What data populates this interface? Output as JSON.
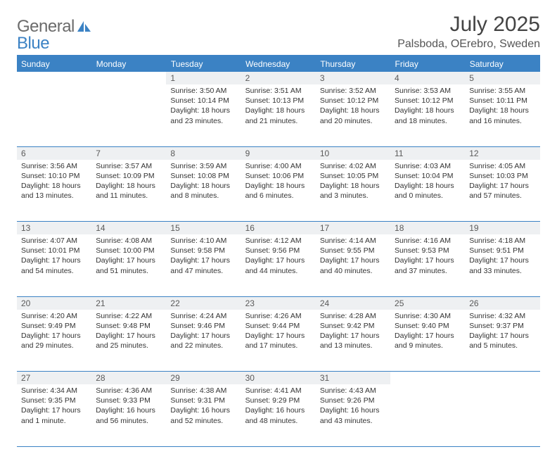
{
  "logo": {
    "part1": "General",
    "part2": "Blue"
  },
  "title": "July 2025",
  "location": "Palsboda, OErebro, Sweden",
  "headers": [
    "Sunday",
    "Monday",
    "Tuesday",
    "Wednesday",
    "Thursday",
    "Friday",
    "Saturday"
  ],
  "colors": {
    "accent": "#3b82c4",
    "daynum_bg": "#eef0f2",
    "text": "#333333",
    "logo_gray": "#6b6b6b"
  },
  "weeks": [
    [
      null,
      null,
      {
        "n": "1",
        "sr": "Sunrise: 3:50 AM",
        "ss": "Sunset: 10:14 PM",
        "dl": "Daylight: 18 hours and 23 minutes."
      },
      {
        "n": "2",
        "sr": "Sunrise: 3:51 AM",
        "ss": "Sunset: 10:13 PM",
        "dl": "Daylight: 18 hours and 21 minutes."
      },
      {
        "n": "3",
        "sr": "Sunrise: 3:52 AM",
        "ss": "Sunset: 10:12 PM",
        "dl": "Daylight: 18 hours and 20 minutes."
      },
      {
        "n": "4",
        "sr": "Sunrise: 3:53 AM",
        "ss": "Sunset: 10:12 PM",
        "dl": "Daylight: 18 hours and 18 minutes."
      },
      {
        "n": "5",
        "sr": "Sunrise: 3:55 AM",
        "ss": "Sunset: 10:11 PM",
        "dl": "Daylight: 18 hours and 16 minutes."
      }
    ],
    [
      {
        "n": "6",
        "sr": "Sunrise: 3:56 AM",
        "ss": "Sunset: 10:10 PM",
        "dl": "Daylight: 18 hours and 13 minutes."
      },
      {
        "n": "7",
        "sr": "Sunrise: 3:57 AM",
        "ss": "Sunset: 10:09 PM",
        "dl": "Daylight: 18 hours and 11 minutes."
      },
      {
        "n": "8",
        "sr": "Sunrise: 3:59 AM",
        "ss": "Sunset: 10:08 PM",
        "dl": "Daylight: 18 hours and 8 minutes."
      },
      {
        "n": "9",
        "sr": "Sunrise: 4:00 AM",
        "ss": "Sunset: 10:06 PM",
        "dl": "Daylight: 18 hours and 6 minutes."
      },
      {
        "n": "10",
        "sr": "Sunrise: 4:02 AM",
        "ss": "Sunset: 10:05 PM",
        "dl": "Daylight: 18 hours and 3 minutes."
      },
      {
        "n": "11",
        "sr": "Sunrise: 4:03 AM",
        "ss": "Sunset: 10:04 PM",
        "dl": "Daylight: 18 hours and 0 minutes."
      },
      {
        "n": "12",
        "sr": "Sunrise: 4:05 AM",
        "ss": "Sunset: 10:03 PM",
        "dl": "Daylight: 17 hours and 57 minutes."
      }
    ],
    [
      {
        "n": "13",
        "sr": "Sunrise: 4:07 AM",
        "ss": "Sunset: 10:01 PM",
        "dl": "Daylight: 17 hours and 54 minutes."
      },
      {
        "n": "14",
        "sr": "Sunrise: 4:08 AM",
        "ss": "Sunset: 10:00 PM",
        "dl": "Daylight: 17 hours and 51 minutes."
      },
      {
        "n": "15",
        "sr": "Sunrise: 4:10 AM",
        "ss": "Sunset: 9:58 PM",
        "dl": "Daylight: 17 hours and 47 minutes."
      },
      {
        "n": "16",
        "sr": "Sunrise: 4:12 AM",
        "ss": "Sunset: 9:56 PM",
        "dl": "Daylight: 17 hours and 44 minutes."
      },
      {
        "n": "17",
        "sr": "Sunrise: 4:14 AM",
        "ss": "Sunset: 9:55 PM",
        "dl": "Daylight: 17 hours and 40 minutes."
      },
      {
        "n": "18",
        "sr": "Sunrise: 4:16 AM",
        "ss": "Sunset: 9:53 PM",
        "dl": "Daylight: 17 hours and 37 minutes."
      },
      {
        "n": "19",
        "sr": "Sunrise: 4:18 AM",
        "ss": "Sunset: 9:51 PM",
        "dl": "Daylight: 17 hours and 33 minutes."
      }
    ],
    [
      {
        "n": "20",
        "sr": "Sunrise: 4:20 AM",
        "ss": "Sunset: 9:49 PM",
        "dl": "Daylight: 17 hours and 29 minutes."
      },
      {
        "n": "21",
        "sr": "Sunrise: 4:22 AM",
        "ss": "Sunset: 9:48 PM",
        "dl": "Daylight: 17 hours and 25 minutes."
      },
      {
        "n": "22",
        "sr": "Sunrise: 4:24 AM",
        "ss": "Sunset: 9:46 PM",
        "dl": "Daylight: 17 hours and 22 minutes."
      },
      {
        "n": "23",
        "sr": "Sunrise: 4:26 AM",
        "ss": "Sunset: 9:44 PM",
        "dl": "Daylight: 17 hours and 17 minutes."
      },
      {
        "n": "24",
        "sr": "Sunrise: 4:28 AM",
        "ss": "Sunset: 9:42 PM",
        "dl": "Daylight: 17 hours and 13 minutes."
      },
      {
        "n": "25",
        "sr": "Sunrise: 4:30 AM",
        "ss": "Sunset: 9:40 PM",
        "dl": "Daylight: 17 hours and 9 minutes."
      },
      {
        "n": "26",
        "sr": "Sunrise: 4:32 AM",
        "ss": "Sunset: 9:37 PM",
        "dl": "Daylight: 17 hours and 5 minutes."
      }
    ],
    [
      {
        "n": "27",
        "sr": "Sunrise: 4:34 AM",
        "ss": "Sunset: 9:35 PM",
        "dl": "Daylight: 17 hours and 1 minute."
      },
      {
        "n": "28",
        "sr": "Sunrise: 4:36 AM",
        "ss": "Sunset: 9:33 PM",
        "dl": "Daylight: 16 hours and 56 minutes."
      },
      {
        "n": "29",
        "sr": "Sunrise: 4:38 AM",
        "ss": "Sunset: 9:31 PM",
        "dl": "Daylight: 16 hours and 52 minutes."
      },
      {
        "n": "30",
        "sr": "Sunrise: 4:41 AM",
        "ss": "Sunset: 9:29 PM",
        "dl": "Daylight: 16 hours and 48 minutes."
      },
      {
        "n": "31",
        "sr": "Sunrise: 4:43 AM",
        "ss": "Sunset: 9:26 PM",
        "dl": "Daylight: 16 hours and 43 minutes."
      },
      null,
      null
    ]
  ]
}
